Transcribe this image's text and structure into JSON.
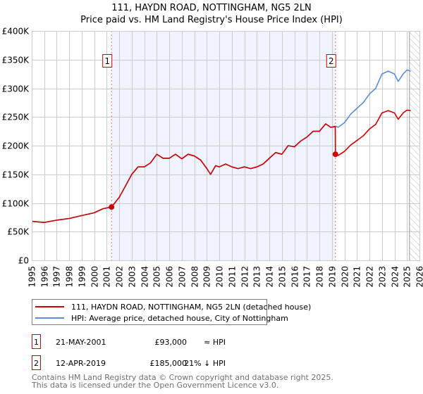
{
  "chart_data": {
    "type": "line",
    "title": "111, HAYDN ROAD, NOTTINGHAM, NG5 2LN",
    "subtitle": "Price paid vs. HM Land Registry's House Price Index (HPI)",
    "xlabel": "",
    "ylabel": "",
    "xlim": [
      1995,
      2026
    ],
    "ylim": [
      0,
      400000
    ],
    "grid": true,
    "x_ticks": [
      "1995",
      "1996",
      "1997",
      "1998",
      "1999",
      "2000",
      "2001",
      "2002",
      "2003",
      "2004",
      "2005",
      "2006",
      "2007",
      "2008",
      "2009",
      "2010",
      "2011",
      "2012",
      "2013",
      "2014",
      "2015",
      "2016",
      "2017",
      "2018",
      "2019",
      "2020",
      "2021",
      "2022",
      "2023",
      "2024",
      "2025",
      "2026"
    ],
    "y_ticks": [
      {
        "value": 0,
        "label": "£0"
      },
      {
        "value": 50000,
        "label": "£50K"
      },
      {
        "value": 100000,
        "label": "£100K"
      },
      {
        "value": 150000,
        "label": "£150K"
      },
      {
        "value": 200000,
        "label": "£200K"
      },
      {
        "value": 250000,
        "label": "£250K"
      },
      {
        "value": 300000,
        "label": "£300K"
      },
      {
        "value": 350000,
        "label": "£350K"
      },
      {
        "value": 400000,
        "label": "£400K"
      }
    ],
    "shaded_range": [
      2001.38,
      2019.28
    ],
    "forecast_hatch_from": 2025.2,
    "series": [
      {
        "name": "111, HAYDN ROAD, NOTTINGHAM, NG5 2LN (detached house)",
        "color": "#cc0000",
        "x": [
          1995,
          1996,
          1997,
          1998,
          1999,
          2000,
          2000.7,
          2001.38,
          2002,
          2002.5,
          2003,
          2003.5,
          2004,
          2004.5,
          2005,
          2005.5,
          2006,
          2006.5,
          2007,
          2007.5,
          2008,
          2008.5,
          2009,
          2009.3,
          2009.7,
          2010,
          2010.5,
          2011,
          2011.5,
          2012,
          2012.5,
          2013,
          2013.5,
          2014,
          2014.5,
          2015,
          2015.5,
          2016,
          2016.5,
          2017,
          2017.5,
          2018,
          2018.5,
          2018.9,
          2019.27,
          2019.28,
          2019.5,
          2020,
          2020.5,
          2021,
          2021.5,
          2022,
          2022.5,
          2023,
          2023.5,
          2024,
          2024.3,
          2024.7,
          2025,
          2025.3
        ],
        "y": [
          68000,
          66000,
          70000,
          73000,
          78000,
          83000,
          90000,
          93000,
          110000,
          130000,
          150000,
          163000,
          163000,
          170000,
          185000,
          178000,
          178000,
          185000,
          177000,
          185000,
          182000,
          175000,
          160000,
          150000,
          165000,
          163000,
          168000,
          163000,
          160000,
          163000,
          160000,
          163000,
          168000,
          178000,
          188000,
          185000,
          200000,
          198000,
          208000,
          215000,
          225000,
          225000,
          238000,
          232000,
          233000,
          185000,
          183000,
          190000,
          201000,
          209000,
          217000,
          229000,
          237000,
          257000,
          261000,
          257000,
          246000,
          257000,
          262000,
          261000
        ]
      },
      {
        "name": "HPI: Average price, detached house, City of Nottingham",
        "color": "#5b8fd4",
        "x": [
          1995,
          1996,
          1997,
          1998,
          1999,
          2000,
          2000.7,
          2001.38,
          2002,
          2002.5,
          2003,
          2003.5,
          2004,
          2004.5,
          2005,
          2005.5,
          2006,
          2006.5,
          2007,
          2007.5,
          2008,
          2008.5,
          2009,
          2009.3,
          2009.7,
          2010,
          2010.5,
          2011,
          2011.5,
          2012,
          2012.5,
          2013,
          2013.5,
          2014,
          2014.5,
          2015,
          2015.5,
          2016,
          2016.5,
          2017,
          2017.5,
          2018,
          2018.5,
          2018.9,
          2019.28,
          2019.5,
          2020,
          2020.5,
          2021,
          2021.5,
          2022,
          2022.5,
          2023,
          2023.5,
          2024,
          2024.3,
          2024.7,
          2025,
          2025.3
        ],
        "y": [
          68000,
          66000,
          70000,
          73000,
          78000,
          83000,
          90000,
          93000,
          110000,
          130000,
          150000,
          163000,
          163000,
          170000,
          185000,
          178000,
          178000,
          185000,
          177000,
          185000,
          182000,
          175000,
          160000,
          150000,
          165000,
          163000,
          168000,
          163000,
          160000,
          163000,
          160000,
          163000,
          168000,
          178000,
          188000,
          185000,
          200000,
          198000,
          208000,
          215000,
          225000,
          225000,
          238000,
          232000,
          234000,
          232000,
          240000,
          255000,
          265000,
          275000,
          290000,
          300000,
          325000,
          330000,
          325000,
          312000,
          325000,
          332000,
          330000
        ]
      }
    ],
    "sales": [
      {
        "id": "1",
        "x": 2001.38,
        "y": 93000,
        "date": "21-MAY-2001",
        "price": "£93,000",
        "hpi_rel": "≈ HPI"
      },
      {
        "id": "2",
        "x": 2019.28,
        "y": 185000,
        "date": "12-APR-2019",
        "price": "£185,000",
        "hpi_rel": "21% ↓ HPI"
      }
    ]
  },
  "footer": {
    "line1": "Contains HM Land Registry data © Crown copyright and database right 2025.",
    "line2": "This data is licensed under the Open Government Licence v3.0."
  }
}
